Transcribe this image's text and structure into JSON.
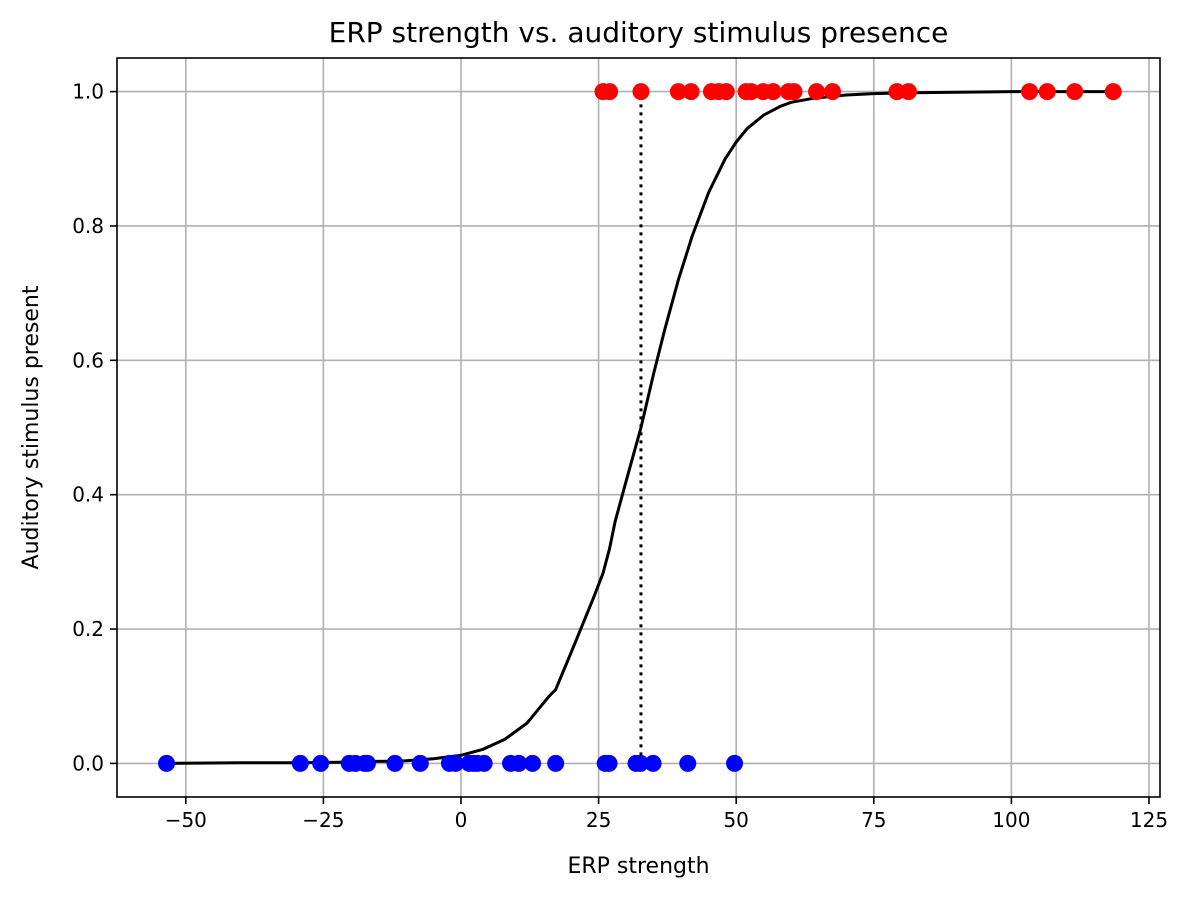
{
  "chart_data": {
    "type": "scatter",
    "title": "ERP strength vs. auditory stimulus presence",
    "xlabel": "ERP strength",
    "ylabel": "Auditory stimulus present",
    "xlim": [
      -62.5,
      127
    ],
    "ylim": [
      -0.05,
      1.05
    ],
    "x_ticks": [
      -50,
      -25,
      0,
      25,
      50,
      75,
      100,
      125
    ],
    "x_tick_labels": [
      "−50",
      "−25",
      "0",
      "25",
      "50",
      "75",
      "100",
      "125"
    ],
    "y_ticks": [
      0.0,
      0.2,
      0.4,
      0.6,
      0.8,
      1.0
    ],
    "y_tick_labels": [
      "0.0",
      "0.2",
      "0.4",
      "0.6",
      "0.8",
      "1.0"
    ],
    "grid": true,
    "series": [
      {
        "color": "#ff0000",
        "kind": "points",
        "points": [
          [
            25.8,
            1
          ],
          [
            27.0,
            1
          ],
          [
            32.7,
            1
          ],
          [
            39.5,
            1
          ],
          [
            41.8,
            1
          ],
          [
            45.5,
            1
          ],
          [
            46.8,
            1
          ],
          [
            48.2,
            1
          ],
          [
            51.8,
            1
          ],
          [
            52.7,
            1
          ],
          [
            54.9,
            1
          ],
          [
            56.7,
            1
          ],
          [
            59.5,
            1
          ],
          [
            60.5,
            1
          ],
          [
            64.6,
            1
          ],
          [
            67.5,
            1
          ],
          [
            79.2,
            1
          ],
          [
            81.3,
            1
          ],
          [
            103.3,
            1
          ],
          [
            106.5,
            1
          ],
          [
            111.5,
            1
          ],
          [
            118.5,
            1
          ]
        ]
      },
      {
        "color": "#0000ff",
        "kind": "points",
        "points": [
          [
            -53.5,
            0
          ],
          [
            -29.2,
            0
          ],
          [
            -25.5,
            0
          ],
          [
            -20.3,
            0
          ],
          [
            -19.2,
            0
          ],
          [
            -17.5,
            0
          ],
          [
            -17.0,
            0
          ],
          [
            -12.0,
            0
          ],
          [
            -7.4,
            0
          ],
          [
            -2.1,
            0
          ],
          [
            -1.0,
            0
          ],
          [
            1.5,
            0
          ],
          [
            2.3,
            0
          ],
          [
            3.0,
            0
          ],
          [
            4.2,
            0
          ],
          [
            9.0,
            0
          ],
          [
            10.5,
            0
          ],
          [
            13.0,
            0
          ],
          [
            17.2,
            0
          ],
          [
            26.2,
            0
          ],
          [
            26.9,
            0
          ],
          [
            31.8,
            0
          ],
          [
            32.6,
            0
          ],
          [
            34.9,
            0
          ],
          [
            41.2,
            0
          ],
          [
            49.7,
            0
          ]
        ]
      },
      {
        "color": "#000000",
        "kind": "line",
        "points": [
          [
            -53.5,
            0.0
          ],
          [
            -40,
            0.001
          ],
          [
            -30,
            0.001
          ],
          [
            -20,
            0.002
          ],
          [
            -10,
            0.004
          ],
          [
            -5,
            0.007
          ],
          [
            0,
            0.012
          ],
          [
            4,
            0.021
          ],
          [
            8,
            0.036
          ],
          [
            12,
            0.06
          ],
          [
            16,
            0.1
          ],
          [
            17.2,
            0.11
          ],
          [
            20,
            0.165
          ],
          [
            24,
            0.245
          ],
          [
            25.8,
            0.283
          ],
          [
            27,
            0.32
          ],
          [
            28,
            0.36
          ],
          [
            30,
            0.42
          ],
          [
            32.7,
            0.5
          ],
          [
            35,
            0.58
          ],
          [
            37,
            0.645
          ],
          [
            39.5,
            0.72
          ],
          [
            42,
            0.785
          ],
          [
            45,
            0.85
          ],
          [
            48,
            0.9
          ],
          [
            50,
            0.925
          ],
          [
            52,
            0.945
          ],
          [
            55,
            0.965
          ],
          [
            58,
            0.978
          ],
          [
            60,
            0.984
          ],
          [
            64,
            0.99
          ],
          [
            70,
            0.995
          ],
          [
            75,
            0.997
          ],
          [
            80,
            0.998
          ],
          [
            90,
            0.999
          ],
          [
            100,
            1.0
          ],
          [
            118.5,
            1.0
          ]
        ]
      },
      {
        "color": "#000000",
        "kind": "vline-dotted",
        "points": [
          [
            32.7,
            0.0
          ],
          [
            32.7,
            1.0
          ]
        ]
      }
    ]
  }
}
